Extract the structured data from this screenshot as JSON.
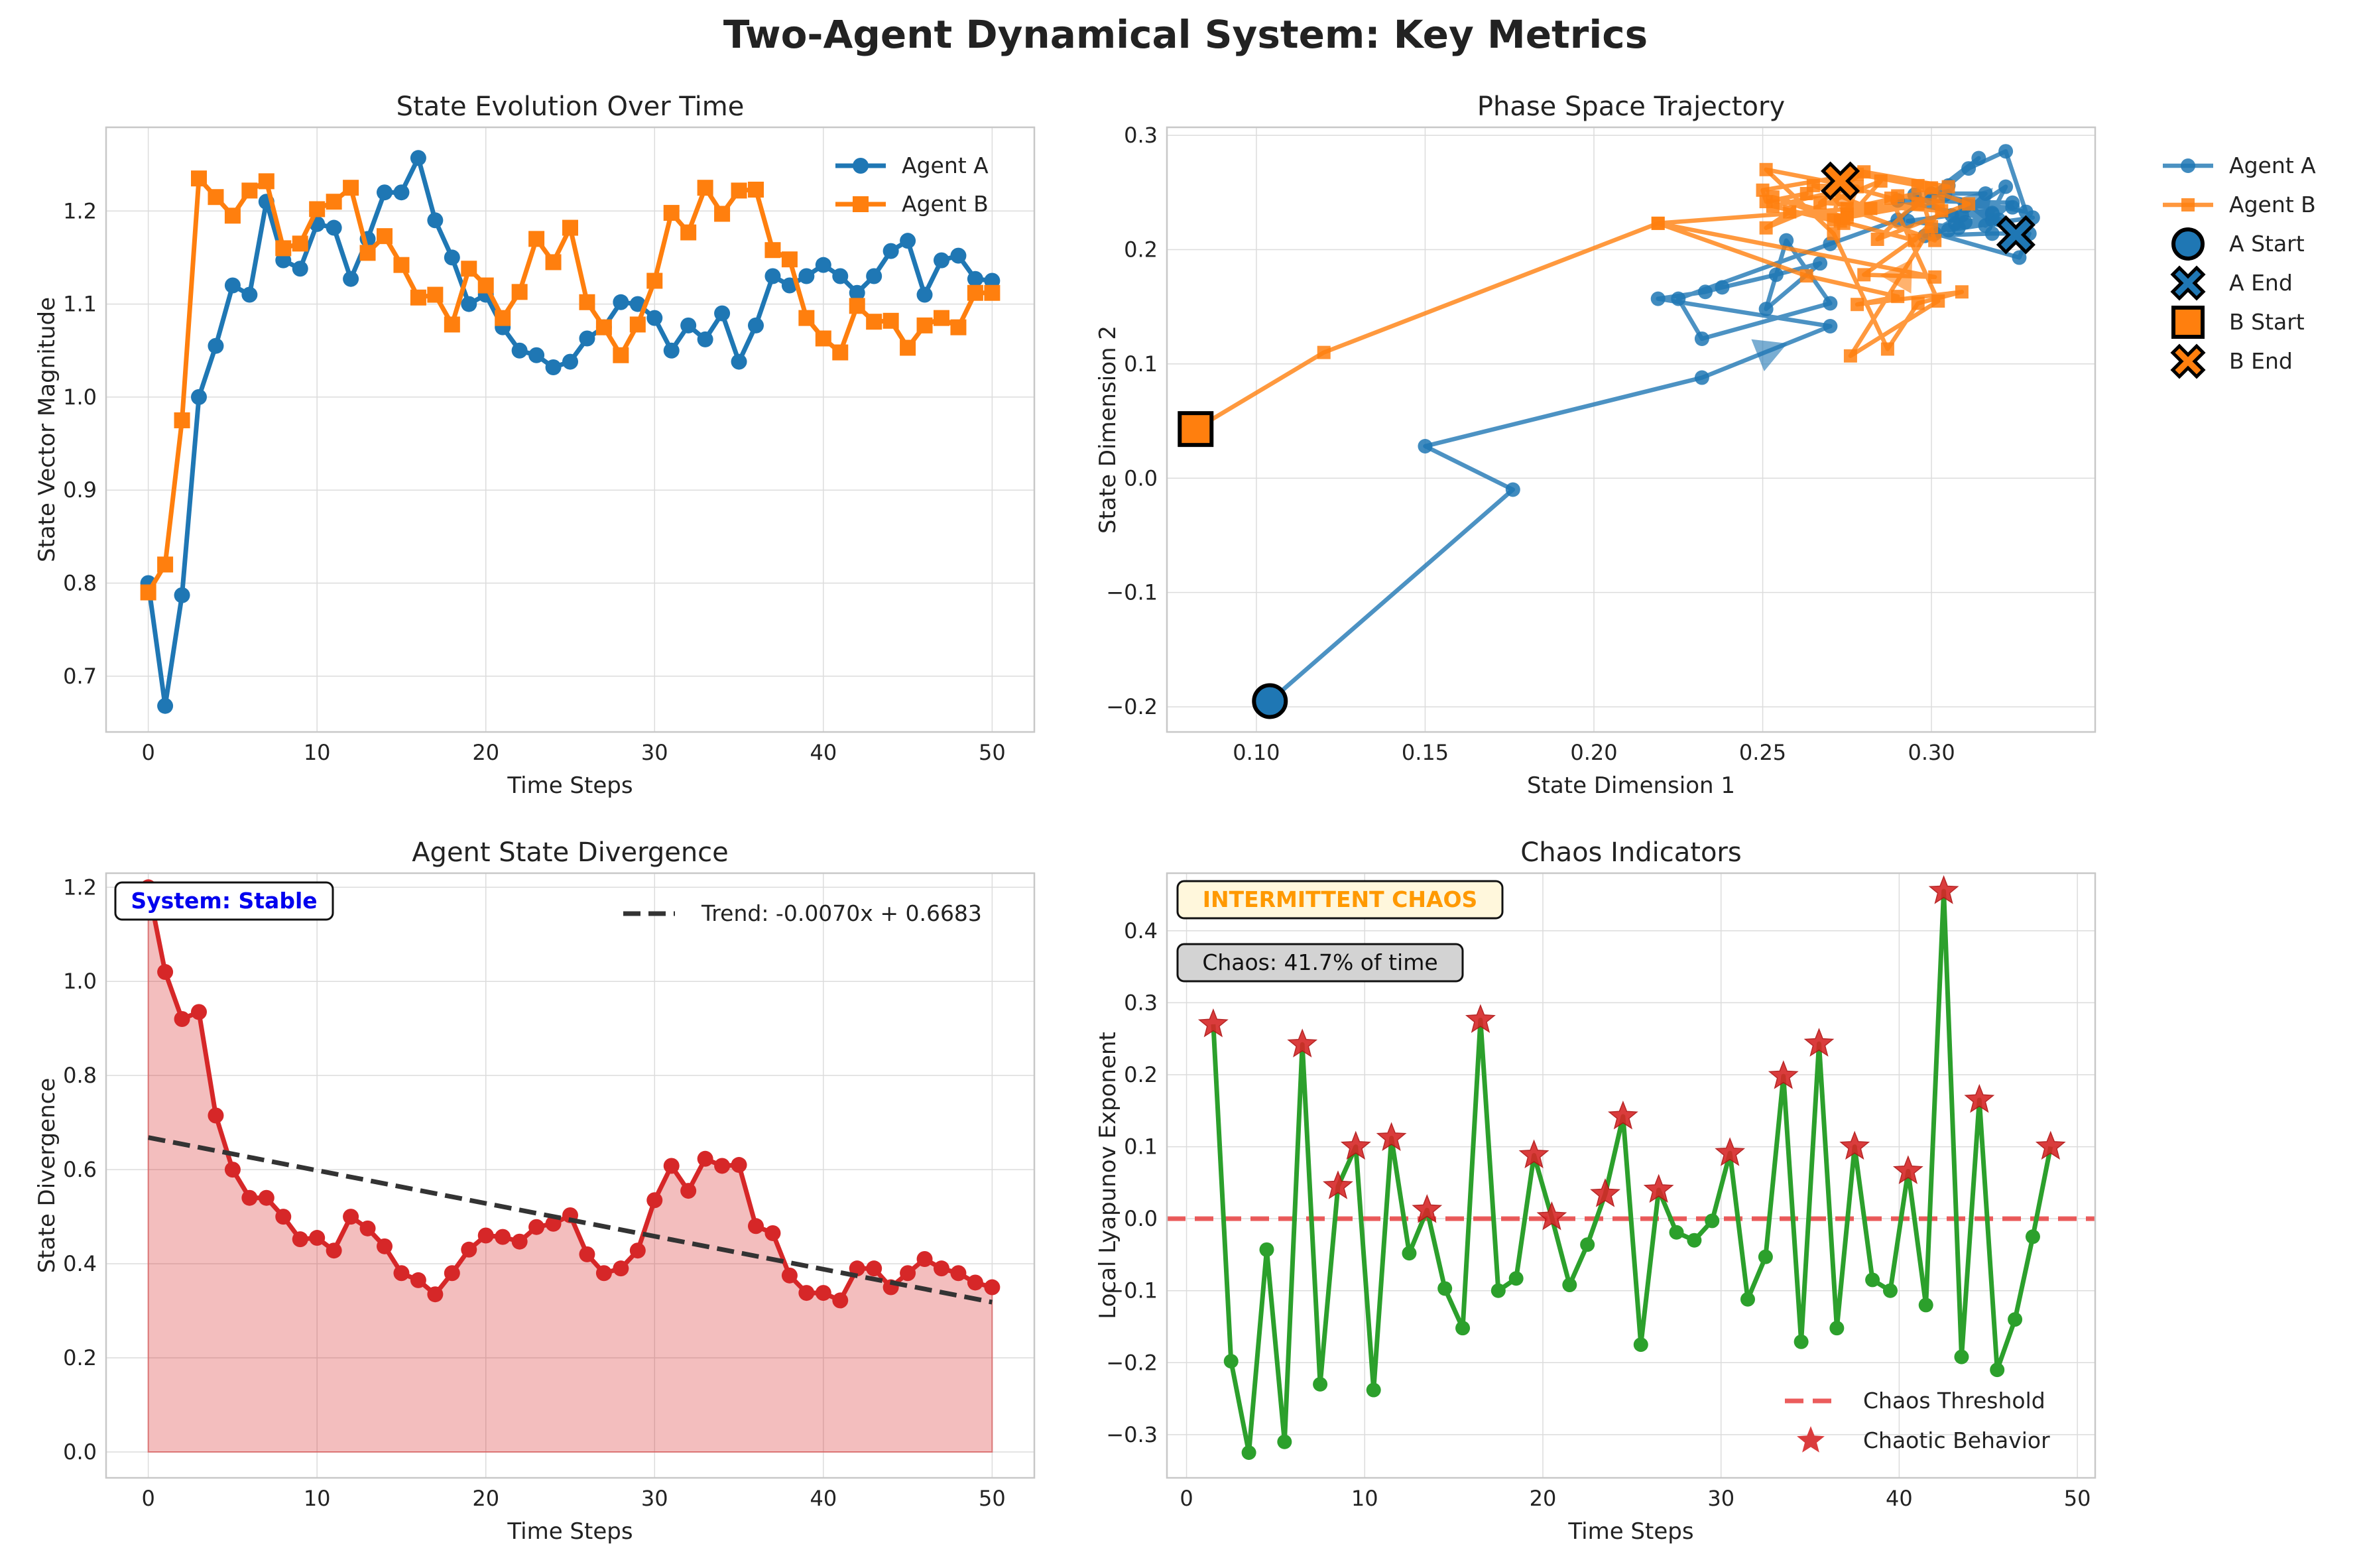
{
  "title": "Two-Agent Dynamical System: Key Metrics",
  "colors": {
    "agent_a": "#1f77b4",
    "agent_b": "#ff7f0e",
    "divergence": "#d62728",
    "lyapunov": "#2ca02c",
    "threshold": "#e84040",
    "trend": "#333333",
    "stable": "#0000ee",
    "chaos_label": "#ff9900"
  },
  "chart_data": [
    {
      "type": "line",
      "title": "State Evolution Over Time",
      "xlabel": "Time Steps",
      "ylabel": "State Vector Magnitude",
      "xlim": [
        -2.5,
        52.5
      ],
      "ylim": [
        0.64,
        1.29
      ],
      "xticks": [
        "0",
        "10",
        "20",
        "30",
        "40",
        "50"
      ],
      "yticks": [
        "0.7",
        "0.8",
        "0.9",
        "1.0",
        "1.1",
        "1.2"
      ],
      "grid": true,
      "legend": "top-right",
      "x": [
        0,
        1,
        2,
        3,
        4,
        5,
        6,
        7,
        8,
        9,
        10,
        11,
        12,
        13,
        14,
        15,
        16,
        17,
        18,
        19,
        20,
        21,
        22,
        23,
        24,
        25,
        26,
        27,
        28,
        29,
        30,
        31,
        32,
        33,
        34,
        35,
        36,
        37,
        38,
        39,
        40,
        41,
        42,
        43,
        44,
        45,
        46,
        47,
        48,
        49,
        50
      ],
      "series": [
        {
          "name": "Agent A",
          "marker": "circle",
          "values": [
            0.8,
            0.668,
            0.787,
            1.0,
            1.055,
            1.12,
            1.11,
            1.21,
            1.147,
            1.138,
            1.186,
            1.182,
            1.127,
            1.17,
            1.22,
            1.22,
            1.257,
            1.19,
            1.15,
            1.1,
            1.11,
            1.075,
            1.05,
            1.045,
            1.032,
            1.038,
            1.063,
            1.075,
            1.102,
            1.1,
            1.085,
            1.05,
            1.077,
            1.062,
            1.09,
            1.038,
            1.077,
            1.13,
            1.12,
            1.13,
            1.142,
            1.13,
            1.112,
            1.13,
            1.157,
            1.168,
            1.11,
            1.147,
            1.152,
            1.127,
            1.125
          ]
        },
        {
          "name": "Agent B",
          "marker": "square",
          "values": [
            0.79,
            0.82,
            0.975,
            1.235,
            1.215,
            1.195,
            1.222,
            1.232,
            1.16,
            1.165,
            1.202,
            1.21,
            1.225,
            1.155,
            1.173,
            1.142,
            1.107,
            1.11,
            1.078,
            1.138,
            1.12,
            1.085,
            1.113,
            1.17,
            1.145,
            1.182,
            1.102,
            1.075,
            1.045,
            1.078,
            1.125,
            1.198,
            1.177,
            1.225,
            1.197,
            1.222,
            1.223,
            1.158,
            1.148,
            1.085,
            1.063,
            1.048,
            1.098,
            1.081,
            1.082,
            1.053,
            1.077,
            1.085,
            1.075,
            1.112,
            1.112
          ]
        }
      ]
    },
    {
      "type": "line",
      "title": "Phase Space Trajectory",
      "xlabel": "State Dimension 1",
      "ylabel": "State Dimension 2",
      "xlim": [
        0.0735,
        0.3485
      ],
      "ylim": [
        -0.222,
        0.307
      ],
      "xticks": [
        "0.10",
        "0.15",
        "0.20",
        "0.25",
        "0.30"
      ],
      "yticks": [
        "−0.2",
        "−0.1",
        "0.0",
        "0.1",
        "0.2",
        "0.3"
      ],
      "grid": true,
      "legend": "outside-right",
      "series": [
        {
          "name": "Agent A",
          "marker": "circle",
          "x": [
            0.104,
            0.176,
            0.15,
            0.232,
            0.27,
            0.219,
            0.233,
            0.238,
            0.254,
            0.267,
            0.251,
            0.257,
            0.27,
            0.232,
            0.225,
            0.27,
            0.29,
            0.314,
            0.305,
            0.311,
            0.322,
            0.328,
            0.3,
            0.316,
            0.307,
            0.318,
            0.29,
            0.324,
            0.316,
            0.306,
            0.295,
            0.31,
            0.301,
            0.326,
            0.329,
            0.318,
            0.298,
            0.309,
            0.322,
            0.318,
            0.305,
            0.33,
            0.308,
            0.293,
            0.324,
            0.31,
            0.32,
            0.318,
            0.326,
            0.304,
            0.325
          ],
          "y": [
            -0.195,
            -0.01,
            0.028,
            0.088,
            0.133,
            0.157,
            0.163,
            0.167,
            0.178,
            0.188,
            0.148,
            0.208,
            0.153,
            0.122,
            0.157,
            0.205,
            0.226,
            0.28,
            0.256,
            0.271,
            0.286,
            0.233,
            0.249,
            0.249,
            0.223,
            0.226,
            0.243,
            0.241,
            0.221,
            0.23,
            0.248,
            0.224,
            0.214,
            0.193,
            0.214,
            0.214,
            0.212,
            0.23,
            0.255,
            0.232,
            0.217,
            0.228,
            0.219,
            0.225,
            0.237,
            0.238,
            0.226,
            0.231,
            0.215,
            0.248,
            0.213
          ]
        },
        {
          "name": "Agent B",
          "marker": "square",
          "x": [
            0.082,
            0.12,
            0.219,
            0.301,
            0.28,
            0.3,
            0.276,
            0.302,
            0.288,
            0.272,
            0.251,
            0.271,
            0.287,
            0.296,
            0.309,
            0.278,
            0.29,
            0.263,
            0.219,
            0.296,
            0.275,
            0.282,
            0.265,
            0.278,
            0.253,
            0.274,
            0.285,
            0.251,
            0.258,
            0.263,
            0.251,
            0.25,
            0.278,
            0.3,
            0.284,
            0.311,
            0.296,
            0.301,
            0.275,
            0.305,
            0.28,
            0.267,
            0.303,
            0.295,
            0.273,
            0.253,
            0.275,
            0.29,
            0.302,
            0.271,
            0.273
          ],
          "y": [
            0.043,
            0.11,
            0.223,
            0.176,
            0.178,
            0.22,
            0.107,
            0.155,
            0.245,
            0.258,
            0.27,
            0.214,
            0.113,
            0.153,
            0.163,
            0.152,
            0.159,
            0.177,
            0.223,
            0.24,
            0.231,
            0.236,
            0.256,
            0.255,
            0.238,
            0.223,
            0.26,
            0.219,
            0.233,
            0.249,
            0.242,
            0.252,
            0.266,
            0.254,
            0.209,
            0.24,
            0.256,
            0.208,
            0.236,
            0.255,
            0.268,
            0.241,
            0.234,
            0.208,
            0.225,
            0.246,
            0.228,
            0.247,
            0.242,
            0.226,
            0.26
          ]
        }
      ],
      "legend_entries": [
        "Agent A",
        "Agent B",
        "A Start",
        "A End",
        "B Start",
        "B End"
      ]
    },
    {
      "type": "area",
      "title": "Agent State Divergence",
      "xlabel": "Time Steps",
      "ylabel": "State Divergence",
      "xlim": [
        -2.5,
        52.5
      ],
      "ylim": [
        -0.055,
        1.23
      ],
      "xticks": [
        "0",
        "10",
        "20",
        "30",
        "40",
        "50"
      ],
      "yticks": [
        "0.0",
        "0.2",
        "0.4",
        "0.6",
        "0.8",
        "1.0",
        "1.2"
      ],
      "grid": true,
      "legend": "top-right",
      "x": [
        0,
        1,
        2,
        3,
        4,
        5,
        6,
        7,
        8,
        9,
        10,
        11,
        12,
        13,
        14,
        15,
        16,
        17,
        18,
        19,
        20,
        21,
        22,
        23,
        24,
        25,
        26,
        27,
        28,
        29,
        30,
        31,
        32,
        33,
        34,
        35,
        36,
        37,
        38,
        39,
        40,
        41,
        42,
        43,
        44,
        45,
        46,
        47,
        48,
        49,
        50
      ],
      "values": [
        1.2,
        1.02,
        0.92,
        0.935,
        0.715,
        0.6,
        0.54,
        0.54,
        0.5,
        0.452,
        0.455,
        0.428,
        0.5,
        0.475,
        0.437,
        0.38,
        0.365,
        0.335,
        0.38,
        0.43,
        0.46,
        0.457,
        0.447,
        0.478,
        0.485,
        0.503,
        0.42,
        0.38,
        0.39,
        0.428,
        0.535,
        0.608,
        0.555,
        0.623,
        0.608,
        0.61,
        0.48,
        0.465,
        0.375,
        0.338,
        0.338,
        0.322,
        0.39,
        0.39,
        0.35,
        0.38,
        0.41,
        0.39,
        0.38,
        0.36,
        0.35
      ],
      "trend": {
        "name": "Trend: -0.0070x + 0.6683",
        "slope": -0.007,
        "intercept": 0.6683
      },
      "annotation": "System: Stable"
    },
    {
      "type": "line",
      "title": "Chaos Indicators",
      "xlabel": "Time Steps",
      "ylabel": "Local Lyapunov Exponent",
      "xlim": [
        -1.1,
        51.0
      ],
      "ylim": [
        -0.36,
        0.48
      ],
      "xticks": [
        "0",
        "10",
        "20",
        "30",
        "40",
        "50"
      ],
      "yticks": [
        "−0.3",
        "−0.2",
        "−0.1",
        "0.0",
        "0.1",
        "0.2",
        "0.3",
        "0.4"
      ],
      "grid": true,
      "legend": "bottom-right",
      "x": [
        1.5,
        2.5,
        3.5,
        4.5,
        5.5,
        6.5,
        7.5,
        8.5,
        9.5,
        10.5,
        11.5,
        12.5,
        13.5,
        14.5,
        15.5,
        16.5,
        17.5,
        18.5,
        19.5,
        20.5,
        21.5,
        22.5,
        23.5,
        24.5,
        25.5,
        26.5,
        27.5,
        28.5,
        29.5,
        30.5,
        31.5,
        32.5,
        33.5,
        34.5,
        35.5,
        36.5,
        37.5,
        38.5,
        39.5,
        40.5,
        41.5,
        42.5,
        43.5,
        44.5,
        45.5,
        46.5,
        47.5,
        48.5
      ],
      "values": [
        0.27,
        -0.198,
        -0.325,
        -0.043,
        -0.31,
        0.242,
        -0.23,
        0.045,
        0.1,
        -0.238,
        0.112,
        -0.048,
        0.012,
        -0.097,
        -0.152,
        0.276,
        -0.1,
        -0.083,
        0.088,
        0.002,
        -0.092,
        -0.036,
        0.034,
        0.142,
        -0.175,
        0.04,
        -0.019,
        -0.03,
        -0.003,
        0.091,
        -0.112,
        -0.053,
        0.198,
        -0.171,
        0.243,
        -0.152,
        0.1,
        -0.085,
        -0.1,
        0.066,
        -0.12,
        0.455,
        -0.192,
        0.165,
        -0.21,
        -0.14,
        -0.025,
        0.1
      ],
      "threshold": {
        "name": "Chaos Threshold",
        "value": 0
      },
      "chaotic_name": "Chaotic Behavior",
      "annotations": [
        "INTERMITTENT CHAOS",
        "Chaos: 41.7% of time"
      ]
    }
  ]
}
